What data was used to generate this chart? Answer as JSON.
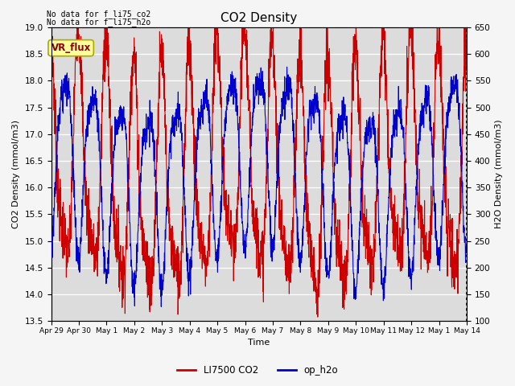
{
  "title": "CO2 Density",
  "xlabel": "Time",
  "ylabel_left": "CO2 Density (mmol/m3)",
  "ylabel_right": "H2O Density (mmol/m3)",
  "top_text_line1": "No data for f_li75_co2",
  "top_text_line2": "No data for f_li75_h2o",
  "vr_flux_label": "VR_flux",
  "legend": [
    "LI7500 CO2",
    "op_h2o"
  ],
  "legend_colors": [
    "#cc0000",
    "#0000cc"
  ],
  "ylim_left": [
    13.5,
    19.0
  ],
  "ylim_right": [
    100,
    650
  ],
  "yticks_left": [
    13.5,
    14.0,
    14.5,
    15.0,
    15.5,
    16.0,
    16.5,
    17.0,
    17.5,
    18.0,
    18.5,
    19.0
  ],
  "yticks_right": [
    100,
    150,
    200,
    250,
    300,
    350,
    400,
    450,
    500,
    550,
    600,
    650
  ],
  "xtick_labels": [
    "Apr 29",
    "Apr 30",
    "May 1",
    "May 2",
    "May 3",
    "May 4",
    "May 5",
    "May 6",
    "May 7",
    "May 8",
    "May 9",
    "May 10",
    "May 11",
    "May 12",
    "May 1",
    "May 14"
  ],
  "bg_color": "#dcdcdc",
  "fig_bg_color": "#f5f5f5",
  "line_color_co2": "#cc0000",
  "line_color_h2o": "#0000cc",
  "n_days": 15,
  "samples_per_day": 144
}
